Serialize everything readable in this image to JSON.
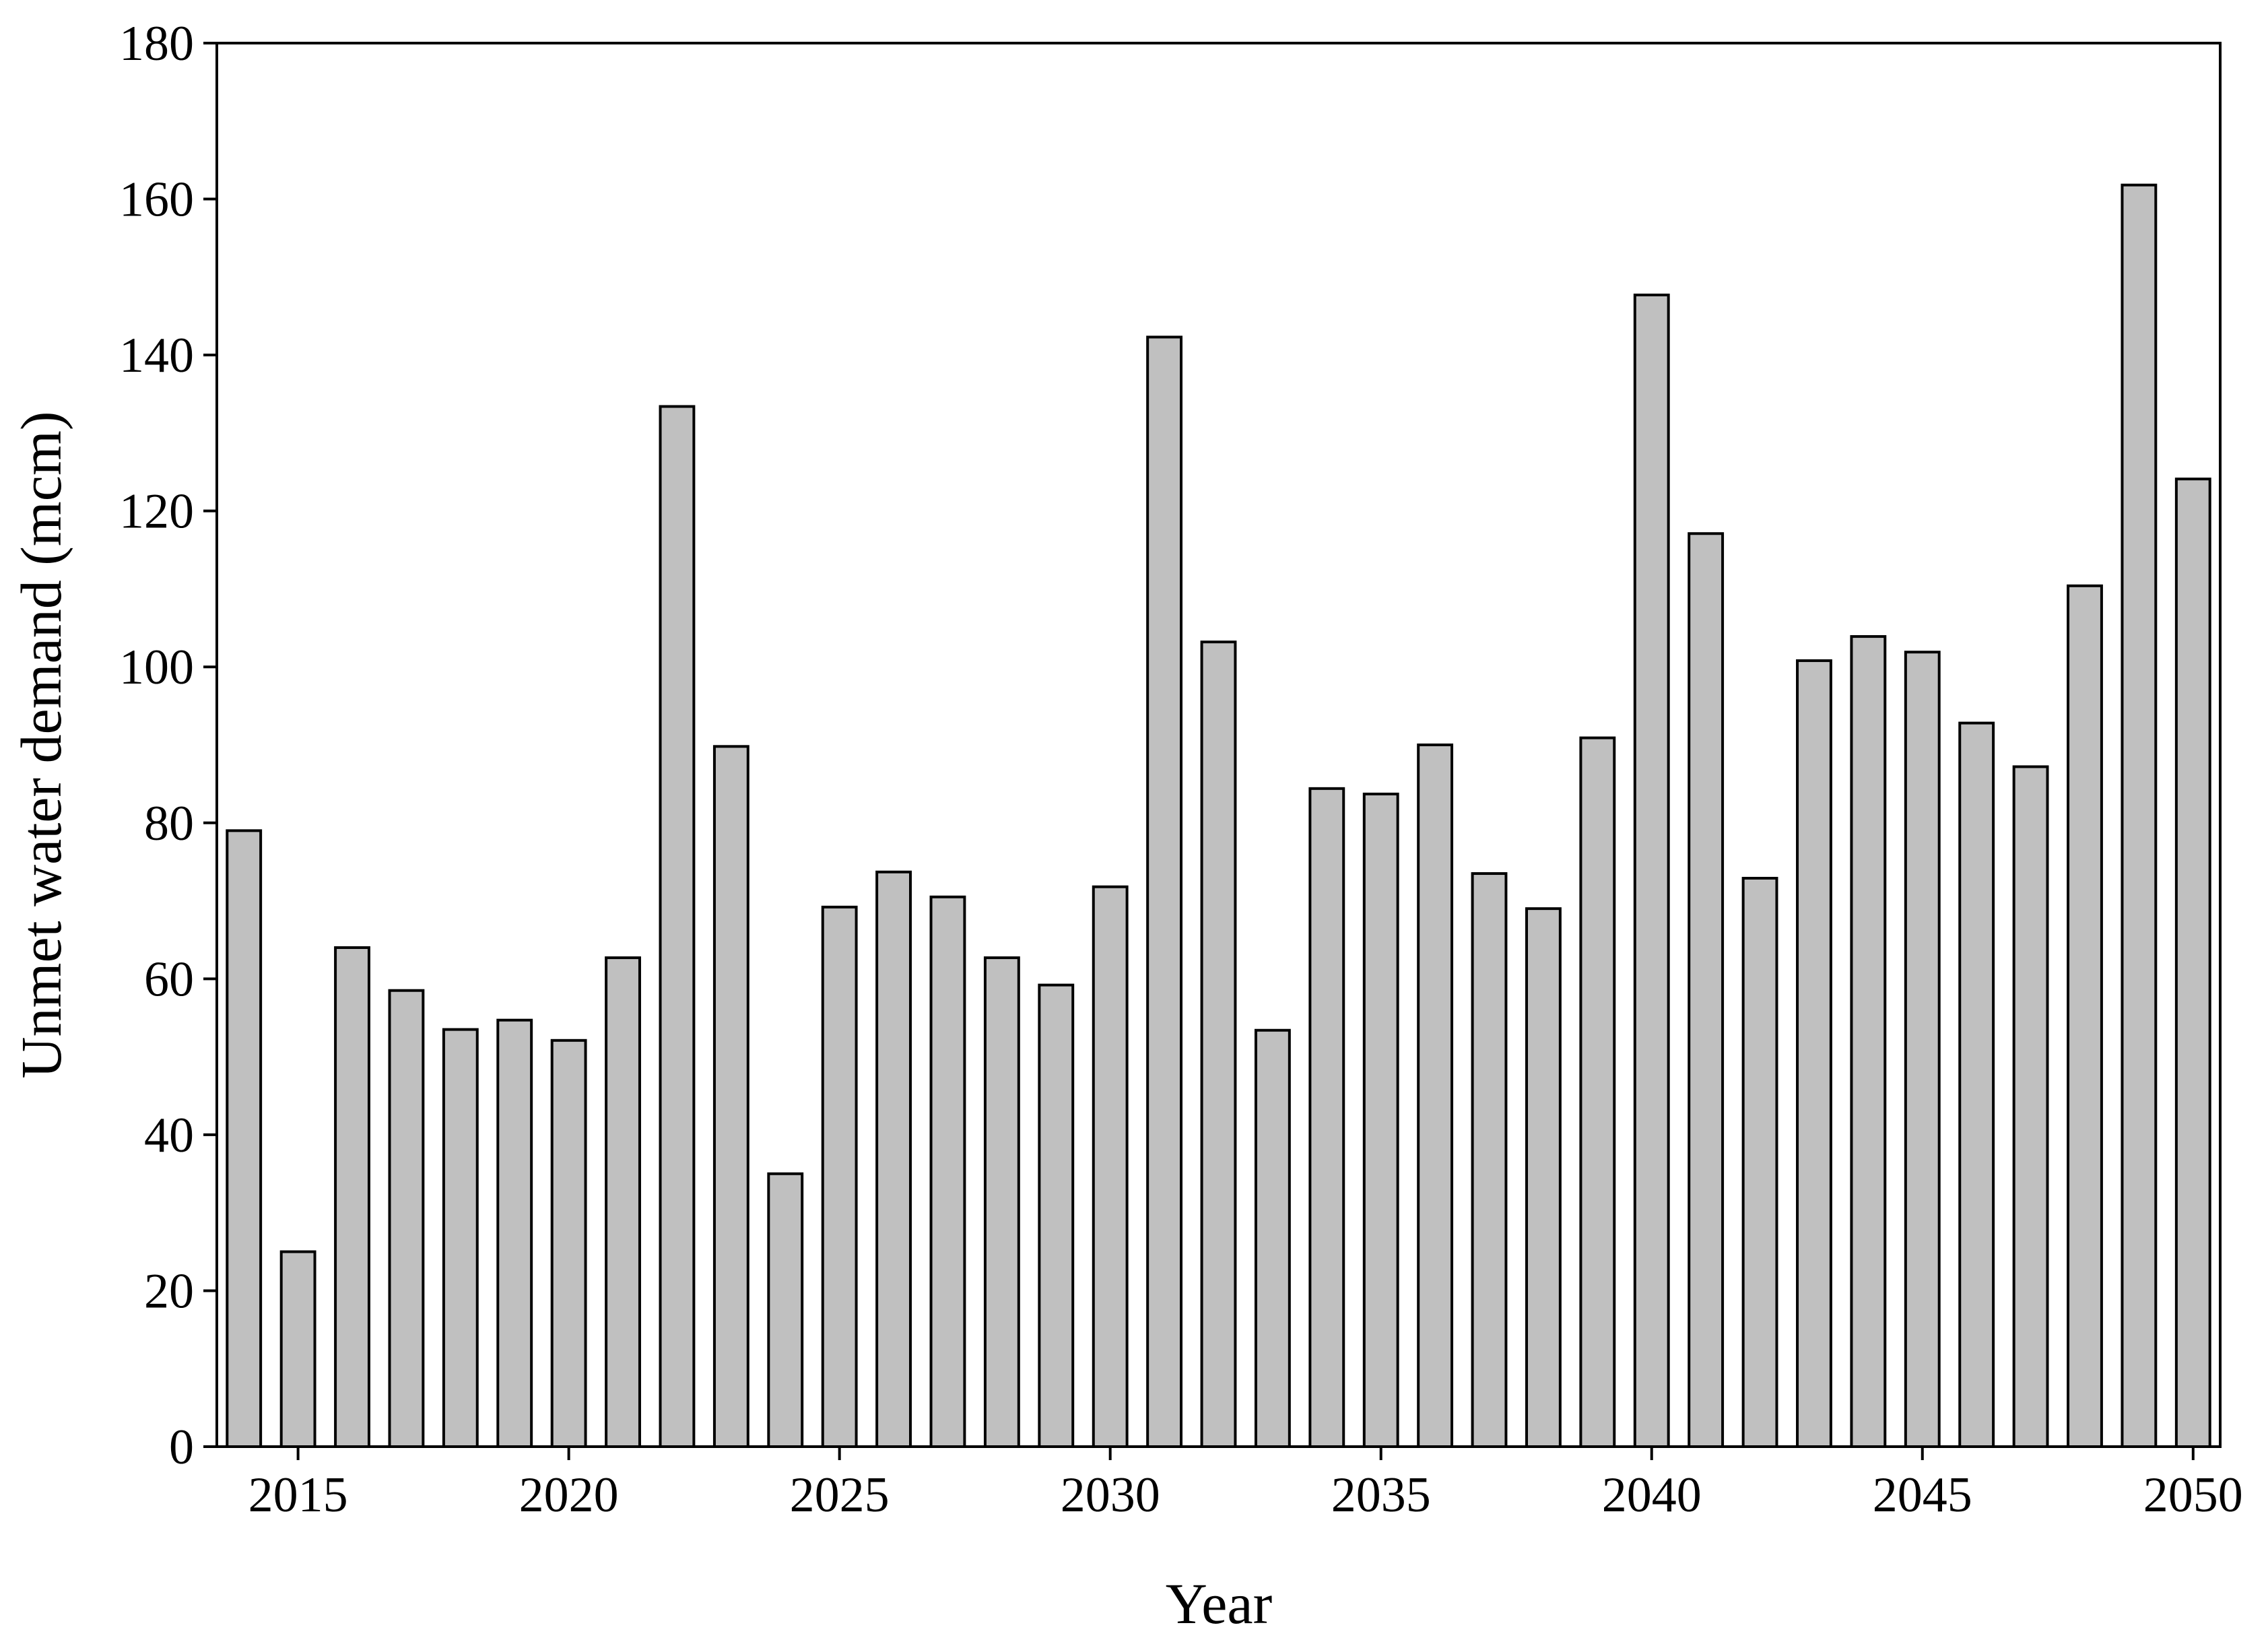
{
  "chart_data": {
    "type": "bar",
    "x_label": "Year",
    "y_label": "Unmet water demand (mcm)",
    "x": [
      2014,
      2015,
      2016,
      2017,
      2018,
      2019,
      2020,
      2021,
      2022,
      2023,
      2024,
      2025,
      2026,
      2027,
      2028,
      2029,
      2030,
      2031,
      2032,
      2033,
      2034,
      2035,
      2036,
      2037,
      2038,
      2039,
      2040,
      2041,
      2042,
      2043,
      2044,
      2045,
      2046,
      2047,
      2048,
      2049,
      2050
    ],
    "values": [
      79,
      25,
      64,
      58.5,
      53.5,
      54.7,
      52.1,
      62.7,
      133.4,
      89.8,
      35,
      69.2,
      73.7,
      70.5,
      62.7,
      59.2,
      71.8,
      142.3,
      103.2,
      53.4,
      84.4,
      83.7,
      90,
      73.5,
      69,
      90.9,
      147.7,
      117.1,
      72.9,
      100.8,
      103.9,
      101.9,
      92.8,
      87.2,
      110.4,
      161.8,
      124.1
    ],
    "color": "#c0c0c0",
    "xlim": [
      2013.5,
      2050.5
    ],
    "xticks": [
      2015,
      2020,
      2025,
      2030,
      2035,
      2040,
      2045,
      2050
    ],
    "ylim": [
      0,
      180
    ],
    "yticks": [
      0,
      20,
      40,
      60,
      80,
      100,
      120,
      140,
      160,
      180
    ],
    "grid": false
  }
}
